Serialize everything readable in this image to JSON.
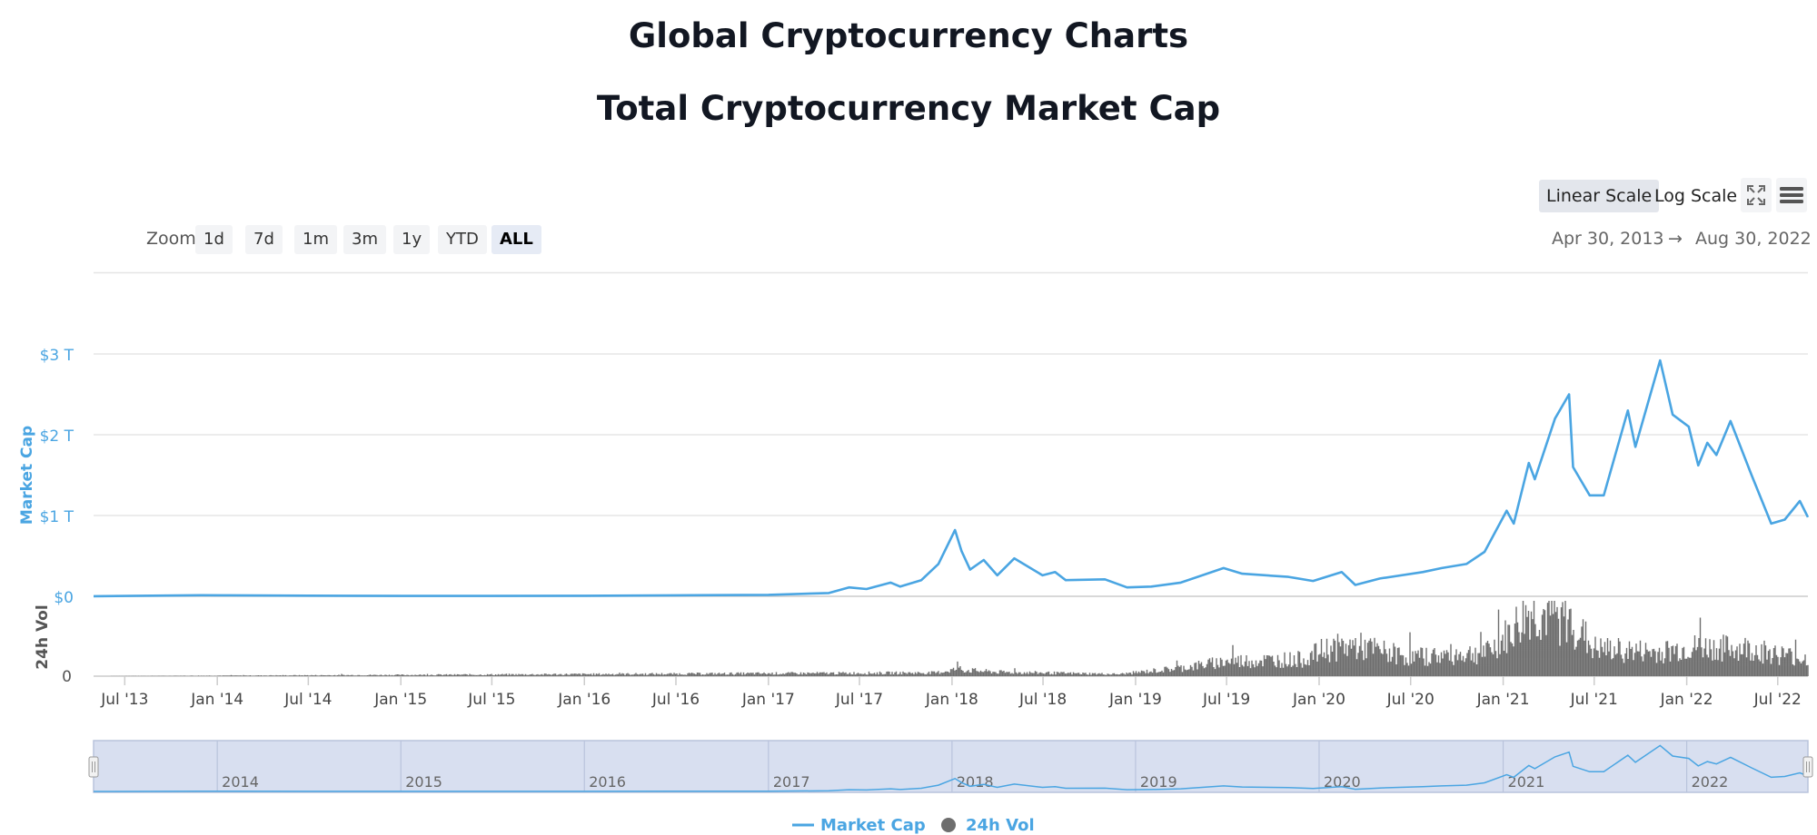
{
  "page": {
    "title": "Global Cryptocurrency Charts",
    "chart_title": "Total Cryptocurrency Market Cap"
  },
  "toolbar": {
    "linear_label": "Linear Scale",
    "log_label": "Log Scale",
    "active_scale": "linear",
    "fullscreen_icon": "fullscreen-icon",
    "menu_icon": "hamburger-menu-icon"
  },
  "zoom": {
    "label": "Zoom",
    "options": [
      "1d",
      "7d",
      "1m",
      "3m",
      "1y",
      "YTD",
      "ALL"
    ],
    "active": "ALL"
  },
  "range": {
    "from": "Apr 30, 2013",
    "arrow": "→",
    "to": "Aug 30, 2022"
  },
  "colors": {
    "market_cap": "#4aa5e2",
    "volume": "#6e6e6e",
    "navigator_fill": "#d8dff0",
    "axis_label_market": "#4aa5e2"
  },
  "chart_data": {
    "type": "line",
    "x_range": [
      "2013-04-30",
      "2022-08-30"
    ],
    "x_ticks": [
      "Jul '13",
      "Jan '14",
      "Jul '14",
      "Jan '15",
      "Jul '15",
      "Jan '16",
      "Jul '16",
      "Jan '17",
      "Jul '17",
      "Jan '18",
      "Jul '18",
      "Jan '19",
      "Jul '19",
      "Jan '20",
      "Jul '20",
      "Jan '21",
      "Jul '21",
      "Jan '22",
      "Jul '22"
    ],
    "series": [
      {
        "name": "Market Cap",
        "axis": "Market Cap",
        "ylim": [
          0,
          3
        ],
        "unit": "T",
        "y_ticks": [
          "$0",
          "$1 T",
          "$2 T",
          "$3 T"
        ],
        "points": [
          [
            "2013-04-30",
            0.0015
          ],
          [
            "2013-11-30",
            0.013
          ],
          [
            "2014-01-15",
            0.012
          ],
          [
            "2014-07-01",
            0.008
          ],
          [
            "2015-01-01",
            0.005
          ],
          [
            "2015-07-01",
            0.004
          ],
          [
            "2016-01-01",
            0.007
          ],
          [
            "2016-07-01",
            0.012
          ],
          [
            "2017-01-01",
            0.018
          ],
          [
            "2017-05-01",
            0.04
          ],
          [
            "2017-06-10",
            0.11
          ],
          [
            "2017-07-15",
            0.09
          ],
          [
            "2017-09-01",
            0.17
          ],
          [
            "2017-09-20",
            0.12
          ],
          [
            "2017-11-01",
            0.2
          ],
          [
            "2017-12-05",
            0.4
          ],
          [
            "2018-01-07",
            0.82
          ],
          [
            "2018-01-20",
            0.56
          ],
          [
            "2018-02-06",
            0.33
          ],
          [
            "2018-03-05",
            0.45
          ],
          [
            "2018-04-01",
            0.26
          ],
          [
            "2018-05-05",
            0.47
          ],
          [
            "2018-06-30",
            0.26
          ],
          [
            "2018-07-25",
            0.3
          ],
          [
            "2018-08-15",
            0.2
          ],
          [
            "2018-11-01",
            0.21
          ],
          [
            "2018-12-15",
            0.11
          ],
          [
            "2019-02-01",
            0.12
          ],
          [
            "2019-04-01",
            0.17
          ],
          [
            "2019-06-25",
            0.35
          ],
          [
            "2019-08-01",
            0.28
          ],
          [
            "2019-11-01",
            0.24
          ],
          [
            "2019-12-20",
            0.19
          ],
          [
            "2020-02-15",
            0.3
          ],
          [
            "2020-03-13",
            0.14
          ],
          [
            "2020-05-01",
            0.22
          ],
          [
            "2020-07-25",
            0.3
          ],
          [
            "2020-09-01",
            0.35
          ],
          [
            "2020-10-20",
            0.4
          ],
          [
            "2020-11-25",
            0.55
          ],
          [
            "2021-01-08",
            1.06
          ],
          [
            "2021-01-22",
            0.9
          ],
          [
            "2021-02-21",
            1.65
          ],
          [
            "2021-03-05",
            1.45
          ],
          [
            "2021-04-14",
            2.2
          ],
          [
            "2021-05-12",
            2.5
          ],
          [
            "2021-05-20",
            1.6
          ],
          [
            "2021-06-22",
            1.25
          ],
          [
            "2021-07-20",
            1.25
          ],
          [
            "2021-09-06",
            2.3
          ],
          [
            "2021-09-21",
            1.85
          ],
          [
            "2021-11-09",
            2.92
          ],
          [
            "2021-12-04",
            2.25
          ],
          [
            "2022-01-05",
            2.1
          ],
          [
            "2022-01-24",
            1.62
          ],
          [
            "2022-02-11",
            1.9
          ],
          [
            "2022-03-01",
            1.75
          ],
          [
            "2022-03-29",
            2.17
          ],
          [
            "2022-05-10",
            1.5
          ],
          [
            "2022-06-18",
            0.9
          ],
          [
            "2022-07-15",
            0.95
          ],
          [
            "2022-08-14",
            1.18
          ],
          [
            "2022-08-30",
            0.98
          ]
        ]
      },
      {
        "name": "24h Vol",
        "axis": "24h Vol",
        "y_ticks": [
          "0"
        ],
        "points": [
          [
            "2013-04-30",
            0
          ],
          [
            "2017-12-01",
            0.05
          ],
          [
            "2018-01-07",
            0.1
          ],
          [
            "2018-04-01",
            0.06
          ],
          [
            "2018-12-01",
            0.03
          ],
          [
            "2019-04-01",
            0.12
          ],
          [
            "2019-07-01",
            0.22
          ],
          [
            "2019-12-01",
            0.25
          ],
          [
            "2020-01-15",
            0.4
          ],
          [
            "2020-03-13",
            0.45
          ],
          [
            "2020-07-01",
            0.28
          ],
          [
            "2020-12-01",
            0.35
          ],
          [
            "2021-01-11",
            0.6
          ],
          [
            "2021-02-23",
            0.95
          ],
          [
            "2021-05-19",
            0.8
          ],
          [
            "2021-07-01",
            0.4
          ],
          [
            "2021-11-01",
            0.35
          ],
          [
            "2022-01-22",
            0.42
          ],
          [
            "2022-05-12",
            0.4
          ],
          [
            "2022-06-13",
            0.35
          ],
          [
            "2022-08-30",
            0.25
          ]
        ]
      }
    ],
    "navigator_ticks": [
      "2014",
      "2015",
      "2016",
      "2017",
      "2018",
      "2019",
      "2020",
      "2021",
      "2022"
    ],
    "legend": [
      "Market Cap",
      "24h Vol"
    ],
    "legend_position": "bottom-center",
    "grid": true
  }
}
